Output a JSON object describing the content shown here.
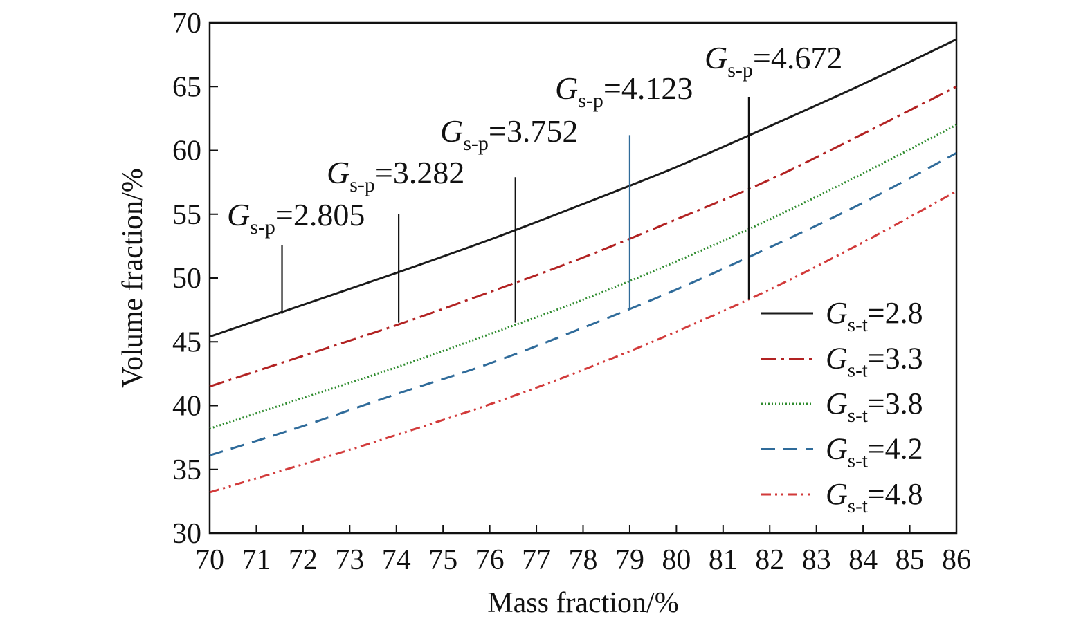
{
  "chart_data": {
    "type": "line",
    "xlabel": "Mass fraction/%",
    "ylabel": "Volume fraction/%",
    "xlim": [
      70,
      86
    ],
    "ylim": [
      30,
      70
    ],
    "xticks": [
      "70",
      "71",
      "72",
      "73",
      "74",
      "75",
      "76",
      "77",
      "78",
      "79",
      "80",
      "81",
      "82",
      "83",
      "84",
      "85",
      "86"
    ],
    "yticks": [
      "30",
      "35",
      "40",
      "45",
      "50",
      "55",
      "60",
      "65",
      "70"
    ],
    "grid": false,
    "legend_position": "lower-right",
    "series": [
      {
        "name": "G",
        "sub": "s-t",
        "value": "=2.8",
        "color": "#1a1a1a",
        "dash": "",
        "width": 3,
        "x": [
          70,
          72,
          74,
          76,
          78,
          80,
          82,
          84,
          86
        ],
        "y": [
          45.4,
          47.9,
          50.4,
          53.0,
          55.8,
          58.7,
          61.9,
          65.2,
          68.7
        ]
      },
      {
        "name": "G",
        "sub": "s-t",
        "value": "=3.3",
        "color": "#b22222",
        "dash": "22 7 4 7",
        "width": 3,
        "x": [
          70,
          72,
          74,
          76,
          78,
          80,
          82,
          84,
          86
        ],
        "y": [
          41.5,
          43.9,
          46.3,
          48.9,
          51.6,
          54.6,
          57.7,
          61.3,
          65.0
        ]
      },
      {
        "name": "G",
        "sub": "s-t",
        "value": "=3.8",
        "color": "#2e8b2e",
        "dash": "2 3",
        "width": 3,
        "x": [
          70,
          72,
          74,
          76,
          78,
          80,
          82,
          84,
          86
        ],
        "y": [
          38.2,
          40.6,
          43.0,
          45.6,
          48.3,
          51.3,
          54.6,
          58.2,
          62.0
        ]
      },
      {
        "name": "G",
        "sub": "s-t",
        "value": "=4.2",
        "color": "#2f6b9a",
        "dash": "20 12",
        "width": 3,
        "x": [
          70,
          72,
          74,
          76,
          78,
          80,
          82,
          84,
          86
        ],
        "y": [
          36.1,
          38.4,
          40.9,
          43.3,
          46.1,
          49.1,
          52.4,
          55.9,
          59.8
        ]
      },
      {
        "name": "G",
        "sub": "s-t",
        "value": "=4.8",
        "color": "#d23a3a",
        "dash": "14 6 3 6 3 6",
        "width": 3,
        "x": [
          70,
          72,
          74,
          76,
          78,
          80,
          82,
          84,
          86
        ],
        "y": [
          33.2,
          35.4,
          37.7,
          40.1,
          42.8,
          45.8,
          49.1,
          52.8,
          56.8
        ]
      }
    ],
    "annotations": [
      {
        "text": "G",
        "sub": "s-p",
        "value": "=2.805",
        "x": 71.55,
        "y_top": 52.6,
        "y_bottom": 47.2,
        "color": "#111111"
      },
      {
        "text": "G",
        "sub": "s-p",
        "value": "=3.282",
        "x": 74.05,
        "y_top": 55.0,
        "y_bottom": 46.5,
        "color": "#111111"
      },
      {
        "text": "G",
        "sub": "s-p",
        "value": "=3.752",
        "x": 76.55,
        "y_top": 57.9,
        "y_bottom": 46.5,
        "color": "#111111"
      },
      {
        "text": "G",
        "sub": "s-p",
        "value": "=4.123",
        "x": 79.0,
        "y_top": 61.2,
        "y_bottom": 47.6,
        "color": "#2f6b9a"
      },
      {
        "text": "G",
        "sub": "s-p",
        "value": "=4.672",
        "x": 81.55,
        "y_top": 64.2,
        "y_bottom": 48.3,
        "color": "#111111"
      }
    ]
  }
}
